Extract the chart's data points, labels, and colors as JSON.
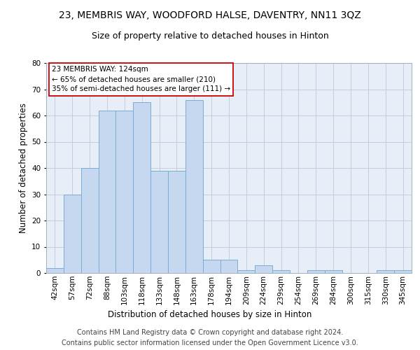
{
  "title": "23, MEMBRIS WAY, WOODFORD HALSE, DAVENTRY, NN11 3QZ",
  "subtitle": "Size of property relative to detached houses in Hinton",
  "xlabel": "Distribution of detached houses by size in Hinton",
  "ylabel": "Number of detached properties",
  "categories": [
    "42sqm",
    "57sqm",
    "72sqm",
    "88sqm",
    "103sqm",
    "118sqm",
    "133sqm",
    "148sqm",
    "163sqm",
    "178sqm",
    "194sqm",
    "209sqm",
    "224sqm",
    "239sqm",
    "254sqm",
    "269sqm",
    "284sqm",
    "300sqm",
    "315sqm",
    "330sqm",
    "345sqm"
  ],
  "values": [
    2,
    30,
    40,
    62,
    62,
    65,
    39,
    39,
    66,
    5,
    5,
    1,
    3,
    1,
    0,
    1,
    1,
    0,
    0,
    1,
    1
  ],
  "bar_color": "#c5d8f0",
  "bar_edge_color": "#7aadd4",
  "ylim": [
    0,
    80
  ],
  "yticks": [
    0,
    10,
    20,
    30,
    40,
    50,
    60,
    70,
    80
  ],
  "annotation_text": "23 MEMBRIS WAY: 124sqm\n← 65% of detached houses are smaller (210)\n35% of semi-detached houses are larger (111) →",
  "annotation_box_color": "#ffffff",
  "annotation_box_edge": "#cc0000",
  "footer_line1": "Contains HM Land Registry data © Crown copyright and database right 2024.",
  "footer_line2": "Contains public sector information licensed under the Open Government Licence v3.0.",
  "background_color": "#ffffff",
  "plot_bg_color": "#e8eef8",
  "grid_color": "#c0c8d8",
  "title_fontsize": 10,
  "subtitle_fontsize": 9,
  "axis_label_fontsize": 8.5,
  "tick_fontsize": 7.5,
  "footer_fontsize": 7,
  "annotation_fontsize": 7.5
}
